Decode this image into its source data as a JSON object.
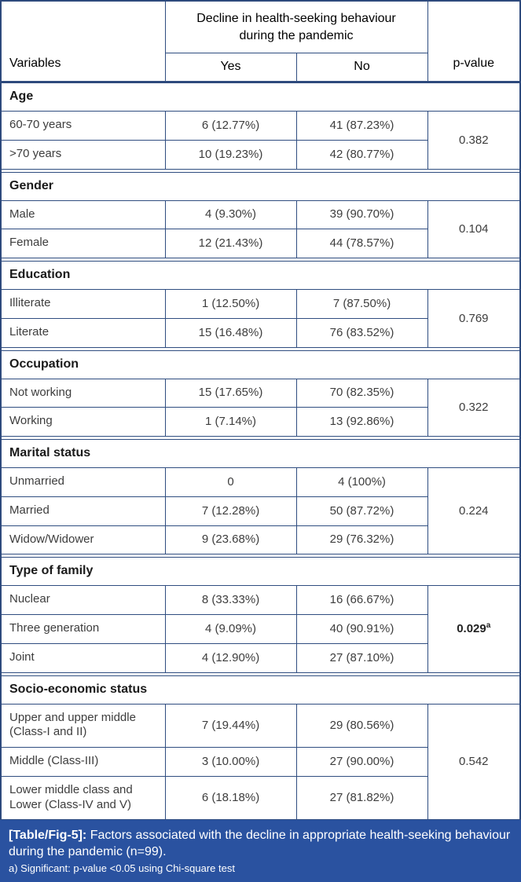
{
  "table": {
    "header": {
      "variables_label": "Variables",
      "group_label": "Decline in health-seeking behaviour during the pandemic",
      "yes_label": "Yes",
      "no_label": "No",
      "pvalue_label": "p-value"
    },
    "sections": [
      {
        "title": "Age",
        "rows": [
          [
            "60-70 years",
            "6 (12.77%)",
            "41 (87.23%)"
          ],
          [
            ">70 years",
            "10 (19.23%)",
            "42 (80.77%)"
          ]
        ],
        "p_value": "0.382",
        "p_superscript": "",
        "significant": false
      },
      {
        "title": "Gender",
        "rows": [
          [
            "Male",
            "4 (9.30%)",
            "39 (90.70%)"
          ],
          [
            "Female",
            "12 (21.43%)",
            "44 (78.57%)"
          ]
        ],
        "p_value": "0.104",
        "p_superscript": "",
        "significant": false
      },
      {
        "title": "Education",
        "rows": [
          [
            "Illiterate",
            "1 (12.50%)",
            "7 (87.50%)"
          ],
          [
            "Literate",
            "15 (16.48%)",
            "76 (83.52%)"
          ]
        ],
        "p_value": "0.769",
        "p_superscript": "",
        "significant": false
      },
      {
        "title": "Occupation",
        "rows": [
          [
            "Not working",
            "15 (17.65%)",
            "70 (82.35%)"
          ],
          [
            "Working",
            "1 (7.14%)",
            "13 (92.86%)"
          ]
        ],
        "p_value": "0.322",
        "p_superscript": "",
        "significant": false
      },
      {
        "title": "Marital status",
        "rows": [
          [
            "Unmarried",
            "0",
            "4 (100%)"
          ],
          [
            "Married",
            "7 (12.28%)",
            "50 (87.72%)"
          ],
          [
            "Widow/Widower",
            "9 (23.68%)",
            "29 (76.32%)"
          ]
        ],
        "p_value": "0.224",
        "p_superscript": "",
        "significant": false
      },
      {
        "title": "Type of family",
        "rows": [
          [
            "Nuclear",
            "8 (33.33%)",
            "16 (66.67%)"
          ],
          [
            "Three generation",
            "4 (9.09%)",
            "40 (90.91%)"
          ],
          [
            "Joint",
            "4 (12.90%)",
            "27 (87.10%)"
          ]
        ],
        "p_value": "0.029",
        "p_superscript": "a",
        "significant": true
      },
      {
        "title": "Socio-economic status",
        "rows": [
          [
            "Upper and upper middle (Class-I and II)",
            "7 (19.44%)",
            "29 (80.56%)"
          ],
          [
            "Middle (Class-III)",
            "3 (10.00%)",
            "27 (90.00%)"
          ],
          [
            "Lower middle class and Lower (Class-IV and V)",
            "6 (18.18%)",
            "27 (81.82%)"
          ]
        ],
        "p_value": "0.542",
        "p_superscript": "",
        "significant": false
      }
    ],
    "caption": {
      "label": "[Table/Fig-5]:",
      "text": " Factors associated with the decline in appropriate health-seeking behaviour during the pandemic (n=99).",
      "footnote": "a) Significant: p-value <0.05 using Chi-square test"
    }
  },
  "colors": {
    "border_dark": "#2e4a7d",
    "grid_line": "#2f4d80",
    "header_bg": "#eaecf5",
    "header_text": "#2b4a9c",
    "body_text": "#3d3d3d",
    "title_text": "#1a1a1a",
    "caption_bg": "#2a52a0",
    "caption_text": "#ffffff"
  }
}
